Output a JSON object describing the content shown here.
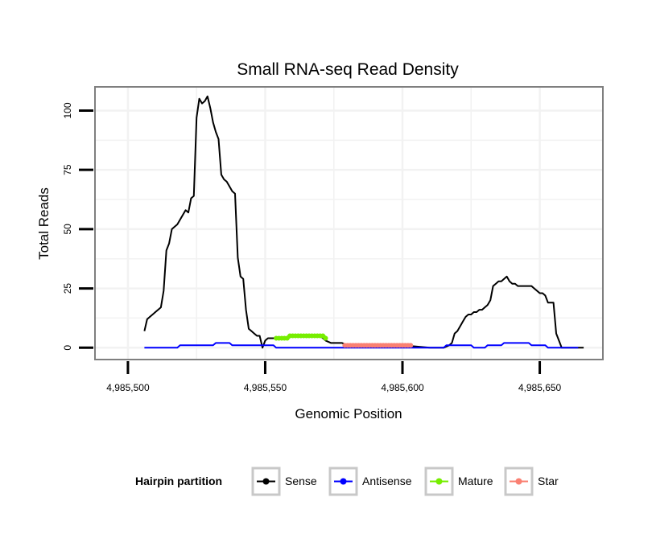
{
  "chart_data": {
    "type": "line",
    "title": "Small RNA-seq Read Density",
    "xlabel": "Genomic Position",
    "ylabel": "Total Reads",
    "xlim": [
      4985488,
      4985673
    ],
    "ylim": [
      -5,
      110
    ],
    "x_ticks": [
      4985500,
      4985550,
      4985600,
      4985650
    ],
    "x_tick_labels": [
      "4,985,500",
      "4,985,550",
      "4,985,600",
      "4,985,650"
    ],
    "y_ticks": [
      0,
      25,
      50,
      75,
      100
    ],
    "y_tick_labels": [
      "0",
      "25",
      "50",
      "75",
      "100"
    ],
    "grid": true,
    "legend": {
      "title": "Hairpin partition",
      "position": "bottom"
    },
    "series": [
      {
        "name": "Sense",
        "color": "#000000",
        "x": [
          4985506,
          4985507,
          4985508,
          4985509,
          4985510,
          4985511,
          4985512,
          4985513,
          4985514,
          4985515,
          4985516,
          4985517,
          4985518,
          4985519,
          4985520,
          4985521,
          4985522,
          4985523,
          4985524,
          4985525,
          4985526,
          4985527,
          4985528,
          4985529,
          4985530,
          4985531,
          4985532,
          4985533,
          4985534,
          4985535,
          4985536,
          4985537,
          4985538,
          4985539,
          4985540,
          4985541,
          4985542,
          4985543,
          4985544,
          4985545,
          4985546,
          4985547,
          4985548,
          4985549,
          4985550,
          4985551,
          4985552,
          4985553,
          4985554,
          4985555,
          4985556,
          4985560,
          4985570,
          4985572,
          4985574,
          4985576,
          4985578,
          4985580,
          4985590,
          4985600,
          4985610,
          4985615,
          4985617,
          4985618,
          4985619,
          4985620,
          4985621,
          4985622,
          4985623,
          4985624,
          4985625,
          4985626,
          4985627,
          4985628,
          4985629,
          4985630,
          4985631,
          4985632,
          4985633,
          4985634,
          4985635,
          4985636,
          4985637,
          4985638,
          4985639,
          4985640,
          4985641,
          4985642,
          4985643,
          4985644,
          4985645,
          4985646,
          4985647,
          4985648,
          4985649,
          4985650,
          4985651,
          4985652,
          4985653,
          4985654,
          4985655,
          4985656,
          4985657,
          4985658,
          4985659,
          4985660,
          4985661,
          4985662,
          4985663,
          4985664,
          4985665,
          4985666
        ],
        "y": [
          7,
          12,
          13,
          14,
          15,
          16,
          17,
          24,
          41,
          44,
          50,
          51,
          52,
          54,
          56,
          58,
          57,
          63,
          64,
          97,
          105,
          103,
          104,
          106,
          101,
          95,
          91,
          88,
          73,
          71,
          70,
          68,
          66,
          65,
          38,
          30,
          29,
          16,
          8,
          7,
          6,
          5,
          5,
          0,
          3,
          4,
          4,
          4,
          4,
          4,
          4,
          5,
          5,
          3,
          2,
          2,
          2,
          1,
          1,
          1,
          0,
          0,
          1,
          2,
          6,
          7,
          9,
          11,
          13,
          14,
          14,
          15,
          15,
          16,
          16,
          17,
          18,
          20,
          26,
          27,
          28,
          28,
          29,
          30,
          28,
          27,
          27,
          26,
          26,
          26,
          26,
          26,
          26,
          25,
          24,
          23,
          23,
          22,
          19,
          19,
          19,
          6,
          3,
          0,
          0,
          0,
          0,
          0,
          0,
          0,
          0,
          0
        ]
      },
      {
        "name": "Antisense",
        "color": "#0000ff",
        "x": [
          4985506,
          4985511,
          4985518,
          4985519,
          4985531,
          4985532,
          4985537,
          4985538,
          4985553,
          4985554,
          4985615,
          4985616,
          4985625,
          4985626,
          4985630,
          4985631,
          4985636,
          4985637,
          4985646,
          4985647,
          4985652,
          4985653,
          4985658,
          4985659,
          4985664
        ],
        "y": [
          0,
          0,
          0,
          1,
          1,
          2,
          2,
          1,
          1,
          0,
          0,
          1,
          1,
          0,
          0,
          1,
          1,
          2,
          2,
          1,
          1,
          0,
          0,
          0,
          0
        ]
      },
      {
        "name": "Mature",
        "color": "#76ee00",
        "x": [
          4985554,
          4985555,
          4985556,
          4985557,
          4985558,
          4985559,
          4985560,
          4985561,
          4985562,
          4985563,
          4985564,
          4985565,
          4985566,
          4985567,
          4985568,
          4985569,
          4985570,
          4985571,
          4985572
        ],
        "y": [
          4,
          4,
          4,
          4,
          4,
          5,
          5,
          5,
          5,
          5,
          5,
          5,
          5,
          5,
          5,
          5,
          5,
          5,
          4
        ]
      },
      {
        "name": "Star",
        "color": "#fa8072",
        "x": [
          4985579,
          4985580,
          4985581,
          4985582,
          4985583,
          4985584,
          4985585,
          4985586,
          4985587,
          4985588,
          4985589,
          4985590,
          4985591,
          4985592,
          4985593,
          4985594,
          4985595,
          4985596,
          4985597,
          4985598,
          4985599,
          4985600,
          4985601,
          4985602,
          4985603
        ],
        "y": [
          1,
          1,
          1,
          1,
          1,
          1,
          1,
          1,
          1,
          1,
          1,
          1,
          1,
          1,
          1,
          1,
          1,
          1,
          1,
          1,
          1,
          1,
          1,
          1,
          1
        ]
      }
    ]
  }
}
